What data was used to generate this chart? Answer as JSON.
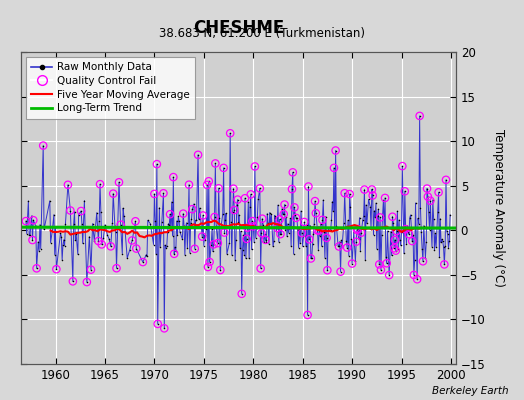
{
  "title": "CHESHME",
  "subtitle": "38.683 N, 61.200 E (Turkmenistan)",
  "ylabel": "Temperature Anomaly (°C)",
  "watermark": "Berkeley Earth",
  "xlim": [
    1956.5,
    2000.5
  ],
  "ylim": [
    -15,
    20
  ],
  "yticks": [
    -15,
    -10,
    -5,
    0,
    5,
    10,
    15,
    20
  ],
  "xticks": [
    1960,
    1965,
    1970,
    1975,
    1980,
    1985,
    1990,
    1995,
    2000
  ],
  "background_color": "#d8d8d8",
  "plot_bg_color": "#d0d0d0",
  "grid_color": "#ffffff",
  "raw_line_color": "#3333cc",
  "raw_marker_color": "#000000",
  "qc_fail_color": "#ff00ff",
  "moving_avg_color": "#ff0000",
  "trend_color": "#00bb00",
  "seed": 42
}
